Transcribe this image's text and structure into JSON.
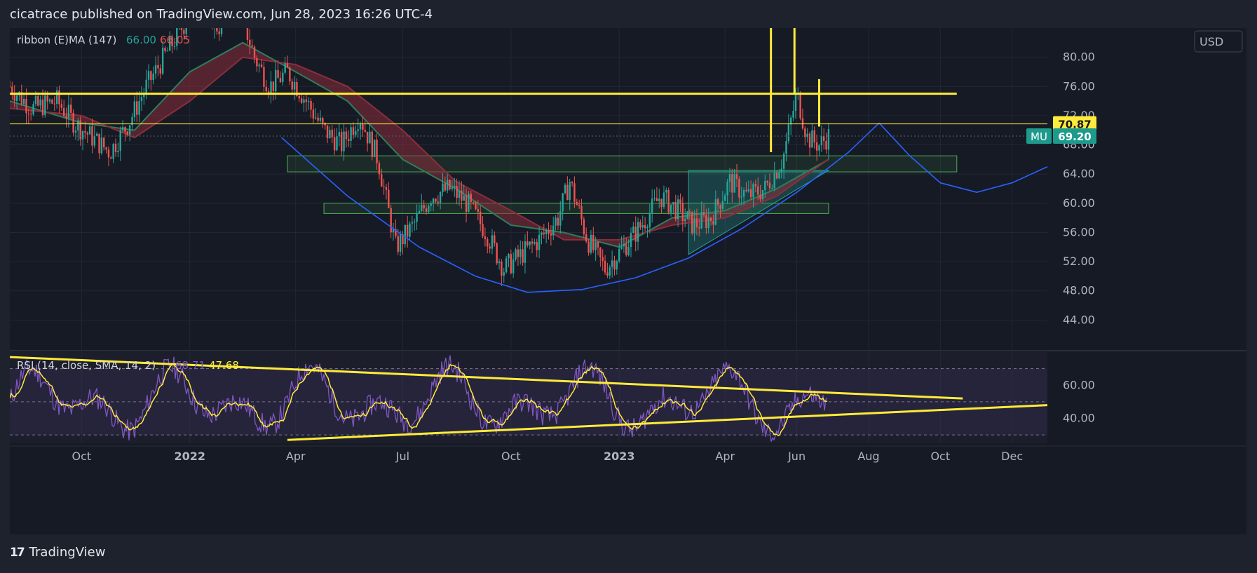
{
  "header": {
    "text": "cicatrace published on TradingView.com, Jun 28, 2023 16:26 UTC-4"
  },
  "footer": {
    "brand": "TradingView",
    "logo_glyph": "17"
  },
  "currency_label": "USD",
  "colors": {
    "background": "#161a25",
    "grid": "#232735",
    "candle_up": "#26a69a",
    "candle_down": "#ef5350",
    "ribbon_up": "#2e7d5b",
    "ribbon_down": "#8b2e3b",
    "trendline": "#ffeb3b",
    "cup_curve": "#2962ff",
    "zone_border": "#4caf50",
    "rsi": "#7e57c2",
    "rsi_sma": "#ffeb3b",
    "badge_mu": "#1e9a8c"
  },
  "chart_data": [
    {
      "type": "line",
      "name": "price",
      "symbol": "MU",
      "legend": {
        "label": "ribbon (E)MA (147)",
        "value_1": "66.00",
        "value_2": "66.05"
      },
      "price_badges": [
        {
          "label": "",
          "value": "70.87",
          "bg": "#ffeb3b",
          "fg": "#131722"
        },
        {
          "label": "MU",
          "value": "69.20",
          "bg": "#1e9a8c",
          "fg": "#ffffff"
        }
      ],
      "y_ticks": [
        "44.00",
        "48.00",
        "52.00",
        "56.00",
        "60.00",
        "64.00",
        "68.00",
        "72.00",
        "76.00",
        "80.00"
      ],
      "ylim": [
        40,
        84
      ],
      "x_ticks": [
        "Oct",
        "2022",
        "Apr",
        "Jul",
        "Oct",
        "2023",
        "Apr",
        "Jun",
        "Aug",
        "Oct",
        "Dec"
      ],
      "x_range": [
        "2021-08-01",
        "2023-12-31"
      ],
      "price_path": [
        [
          "2021-08-01",
          76
        ],
        [
          "2021-08-20",
          73
        ],
        [
          "2021-09-10",
          74
        ],
        [
          "2021-09-25",
          71
        ],
        [
          "2021-10-10",
          69
        ],
        [
          "2021-10-25",
          67
        ],
        [
          "2021-11-10",
          71
        ],
        [
          "2021-11-25",
          76
        ],
        [
          "2021-12-10",
          80
        ],
        [
          "2021-12-25",
          84
        ],
        [
          "2022-01-10",
          88
        ],
        [
          "2022-01-25",
          84
        ],
        [
          "2022-02-10",
          88
        ],
        [
          "2022-02-25",
          80
        ],
        [
          "2022-03-10",
          76
        ],
        [
          "2022-03-25",
          78
        ],
        [
          "2022-04-10",
          74
        ],
        [
          "2022-04-25",
          70
        ],
        [
          "2022-05-10",
          68
        ],
        [
          "2022-05-25",
          72
        ],
        [
          "2022-06-10",
          66
        ],
        [
          "2022-06-25",
          54
        ],
        [
          "2022-07-10",
          57
        ],
        [
          "2022-07-25",
          61
        ],
        [
          "2022-08-10",
          62
        ],
        [
          "2022-08-25",
          60
        ],
        [
          "2022-09-10",
          56
        ],
        [
          "2022-09-25",
          51
        ],
        [
          "2022-10-10",
          53
        ],
        [
          "2022-10-25",
          55
        ],
        [
          "2022-11-10",
          58
        ],
        [
          "2022-11-20",
          63
        ],
        [
          "2022-12-05",
          55
        ],
        [
          "2022-12-20",
          51
        ],
        [
          "2023-01-05",
          54
        ],
        [
          "2023-01-20",
          57
        ],
        [
          "2023-02-05",
          61
        ],
        [
          "2023-02-20",
          59
        ],
        [
          "2023-03-05",
          57
        ],
        [
          "2023-03-20",
          58
        ],
        [
          "2023-04-05",
          63
        ],
        [
          "2023-04-20",
          61
        ],
        [
          "2023-05-05",
          62
        ],
        [
          "2023-05-20",
          66
        ],
        [
          "2023-06-01",
          75
        ],
        [
          "2023-06-10",
          69
        ],
        [
          "2023-06-20",
          68
        ],
        [
          "2023-06-28",
          69.2
        ]
      ],
      "ribbon": [
        [
          "2021-08-01",
          74,
          73
        ],
        [
          "2021-10-01",
          71,
          72
        ],
        [
          "2021-11-15",
          70,
          69
        ],
        [
          "2022-01-01",
          78,
          74
        ],
        [
          "2022-02-15",
          82,
          80
        ],
        [
          "2022-04-01",
          78,
          79
        ],
        [
          "2022-05-15",
          74,
          76
        ],
        [
          "2022-07-01",
          66,
          70
        ],
        [
          "2022-08-15",
          62,
          63
        ],
        [
          "2022-10-01",
          57,
          59
        ],
        [
          "2022-11-15",
          56,
          55
        ],
        [
          "2023-01-01",
          54,
          55
        ],
        [
          "2023-02-15",
          58,
          57
        ],
        [
          "2023-04-01",
          59,
          58
        ],
        [
          "2023-05-15",
          62,
          61
        ],
        [
          "2023-06-28",
          66.0,
          66.05
        ]
      ],
      "horizontal_lines": [
        {
          "y": 75.0,
          "from": "2021-08-01",
          "to": "2023-10-15",
          "color": "#ffeb3b",
          "width": 3
        },
        {
          "y": 70.87,
          "from": "2021-08-01",
          "to": "2023-12-31",
          "color": "#ffeb3b",
          "width": 1
        }
      ],
      "vertical_lines": [
        {
          "x": "2023-05-10",
          "y1": 84,
          "y2": 67
        },
        {
          "x": "2023-05-30",
          "y1": 84,
          "y2": 75
        },
        {
          "x": "2023-06-20",
          "y1": 77,
          "y2": 70.5
        }
      ],
      "zones": [
        {
          "from": "2022-03-25",
          "to": "2023-10-15",
          "y_top": 66.5,
          "y_bottom": 64.3
        },
        {
          "from": "2022-04-25",
          "to": "2023-06-28",
          "y_top": 60.0,
          "y_bottom": 58.6
        }
      ],
      "triangle": [
        [
          "2023-03-01",
          64.5
        ],
        [
          "2023-06-28",
          64.5
        ],
        [
          "2023-03-01",
          53.0
        ]
      ],
      "cup_curve": [
        [
          "2022-03-20",
          69
        ],
        [
          "2022-05-15",
          61
        ],
        [
          "2022-07-15",
          54
        ],
        [
          "2022-09-01",
          50
        ],
        [
          "2022-10-15",
          47.8
        ],
        [
          "2022-12-01",
          48.2
        ],
        [
          "2023-01-15",
          49.8
        ],
        [
          "2023-03-01",
          52.5
        ],
        [
          "2023-04-15",
          56.5
        ],
        [
          "2023-06-01",
          61.5
        ],
        [
          "2023-07-15",
          67.0
        ],
        [
          "2023-08-10",
          71.0
        ]
      ],
      "handle_curve": [
        [
          "2023-08-10",
          71.0
        ],
        [
          "2023-09-05",
          66.5
        ],
        [
          "2023-10-01",
          62.8
        ],
        [
          "2023-11-01",
          61.5
        ],
        [
          "2023-12-01",
          62.8
        ],
        [
          "2023-12-31",
          65.0
        ]
      ]
    },
    {
      "type": "line",
      "name": "RSI",
      "legend": {
        "label": "RSI (14, close, SMA, 14, 2)",
        "value_1": "68.71",
        "value_2": "47.68"
      },
      "y_ticks": [
        "40.00",
        "60.00"
      ],
      "ylim": [
        25,
        80
      ],
      "guide_levels": [
        70,
        50,
        30
      ],
      "trendlines": [
        {
          "from": [
            "2021-08-01",
            77
          ],
          "to": [
            "2023-10-20",
            52
          ]
        },
        {
          "from": [
            "2022-03-25",
            27
          ],
          "to": [
            "2023-12-31",
            48
          ]
        }
      ]
    }
  ]
}
